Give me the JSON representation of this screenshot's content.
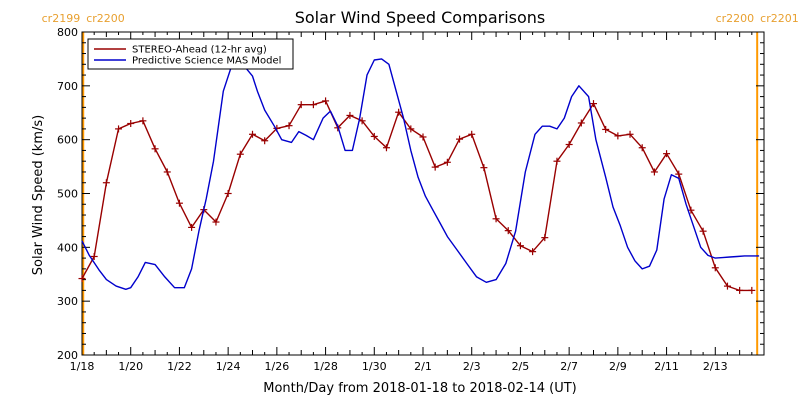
{
  "chart_data": {
    "type": "line",
    "title": "Solar Wind Speed Comparisons",
    "xlabel": "Month/Day from 2018-01-18 to 2018-02-14 (UT)",
    "ylabel": "Solar Wind Speed (km/s)",
    "x_unit": "days",
    "xlim": [
      0,
      28
    ],
    "ylim": [
      200,
      800
    ],
    "x_ticks": [
      {
        "x": 0,
        "label": "1/18"
      },
      {
        "x": 2,
        "label": "1/20"
      },
      {
        "x": 4,
        "label": "1/22"
      },
      {
        "x": 6,
        "label": "1/24"
      },
      {
        "x": 8,
        "label": "1/26"
      },
      {
        "x": 10,
        "label": "1/28"
      },
      {
        "x": 12,
        "label": "1/30"
      },
      {
        "x": 14,
        "label": "2/1"
      },
      {
        "x": 16,
        "label": "2/3"
      },
      {
        "x": 18,
        "label": "2/5"
      },
      {
        "x": 20,
        "label": "2/7"
      },
      {
        "x": 22,
        "label": "2/9"
      },
      {
        "x": 24,
        "label": "2/11"
      },
      {
        "x": 26,
        "label": "2/13"
      }
    ],
    "y_ticks": [
      200,
      300,
      400,
      500,
      600,
      700,
      800
    ],
    "grid": false,
    "legend_position": "top-left",
    "rotation_markers": [
      {
        "x": 0.05,
        "left_label": "cr2199",
        "right_label": "cr2200",
        "color": "#ff9900"
      },
      {
        "x": 27.72,
        "left_label": "cr2200",
        "right_label": "cr2201",
        "color": "#ff9900"
      }
    ],
    "series": [
      {
        "name": "STEREO-Ahead (12-hr avg)",
        "color": "#990000",
        "marker": "plus",
        "x": [
          0.0,
          0.5,
          1.0,
          1.5,
          2.0,
          2.5,
          3.0,
          3.5,
          4.0,
          4.5,
          5.0,
          5.5,
          6.0,
          6.5,
          7.0,
          7.5,
          8.0,
          8.5,
          9.0,
          9.5,
          10.0,
          10.5,
          11.0,
          11.5,
          12.0,
          12.5,
          13.0,
          13.5,
          14.0,
          14.5,
          15.0,
          15.5,
          16.0,
          16.5,
          17.0,
          17.5,
          18.0,
          18.5,
          19.0,
          19.5,
          20.0,
          20.5,
          21.0,
          21.5,
          22.0,
          22.5,
          23.0,
          23.5,
          24.0,
          24.5,
          25.0,
          25.5,
          26.0,
          26.5,
          27.0,
          27.5
        ],
        "values": [
          342,
          383,
          520,
          620,
          630,
          635,
          583,
          540,
          482,
          437,
          470,
          447,
          500,
          573,
          610,
          598,
          621,
          626,
          665,
          665,
          672,
          622,
          645,
          635,
          606,
          585,
          651,
          620,
          605,
          549,
          558,
          601,
          610,
          548,
          453,
          431,
          403,
          392,
          418,
          560,
          591,
          631,
          667,
          619,
          607,
          610,
          585,
          540,
          574,
          536,
          469,
          430,
          362,
          328,
          320,
          320
        ]
      },
      {
        "name": "Predictive Science MAS Model",
        "color": "#0000cc",
        "marker": "none",
        "x": [
          0.0,
          0.3,
          0.7,
          1.0,
          1.4,
          1.8,
          2.0,
          2.3,
          2.6,
          3.0,
          3.4,
          3.8,
          4.2,
          4.5,
          4.8,
          5.1,
          5.4,
          5.8,
          6.2,
          6.6,
          7.0,
          7.2,
          7.5,
          7.9,
          8.2,
          8.6,
          8.9,
          9.2,
          9.5,
          9.9,
          10.2,
          10.5,
          10.8,
          11.1,
          11.4,
          11.7,
          12.0,
          12.3,
          12.6,
          12.9,
          13.2,
          13.5,
          13.8,
          14.1,
          14.4,
          14.7,
          15.0,
          15.4,
          15.8,
          16.2,
          16.6,
          17.0,
          17.4,
          17.8,
          18.2,
          18.6,
          18.9,
          19.2,
          19.5,
          19.8,
          20.1,
          20.4,
          20.8,
          21.1,
          21.5,
          21.8,
          22.1,
          22.4,
          22.7,
          23.0,
          23.3,
          23.6,
          23.9,
          24.2,
          24.5,
          24.8,
          25.1,
          25.4,
          25.7,
          26.0,
          26.3,
          26.6,
          26.9,
          27.2,
          27.5,
          27.8
        ],
        "values": [
          412,
          385,
          358,
          340,
          328,
          322,
          325,
          345,
          372,
          368,
          345,
          325,
          325,
          360,
          430,
          490,
          560,
          690,
          745,
          740,
          718,
          690,
          655,
          625,
          600,
          595,
          615,
          608,
          600,
          640,
          653,
          625,
          580,
          580,
          640,
          720,
          748,
          750,
          740,
          690,
          640,
          580,
          530,
          495,
          470,
          445,
          420,
          395,
          370,
          345,
          335,
          340,
          370,
          430,
          540,
          610,
          625,
          625,
          620,
          640,
          680,
          700,
          680,
          600,
          530,
          475,
          440,
          400,
          375,
          360,
          365,
          395,
          490,
          535,
          528,
          480,
          440,
          400,
          385,
          380,
          381,
          382,
          383,
          384,
          384,
          384
        ]
      }
    ]
  }
}
